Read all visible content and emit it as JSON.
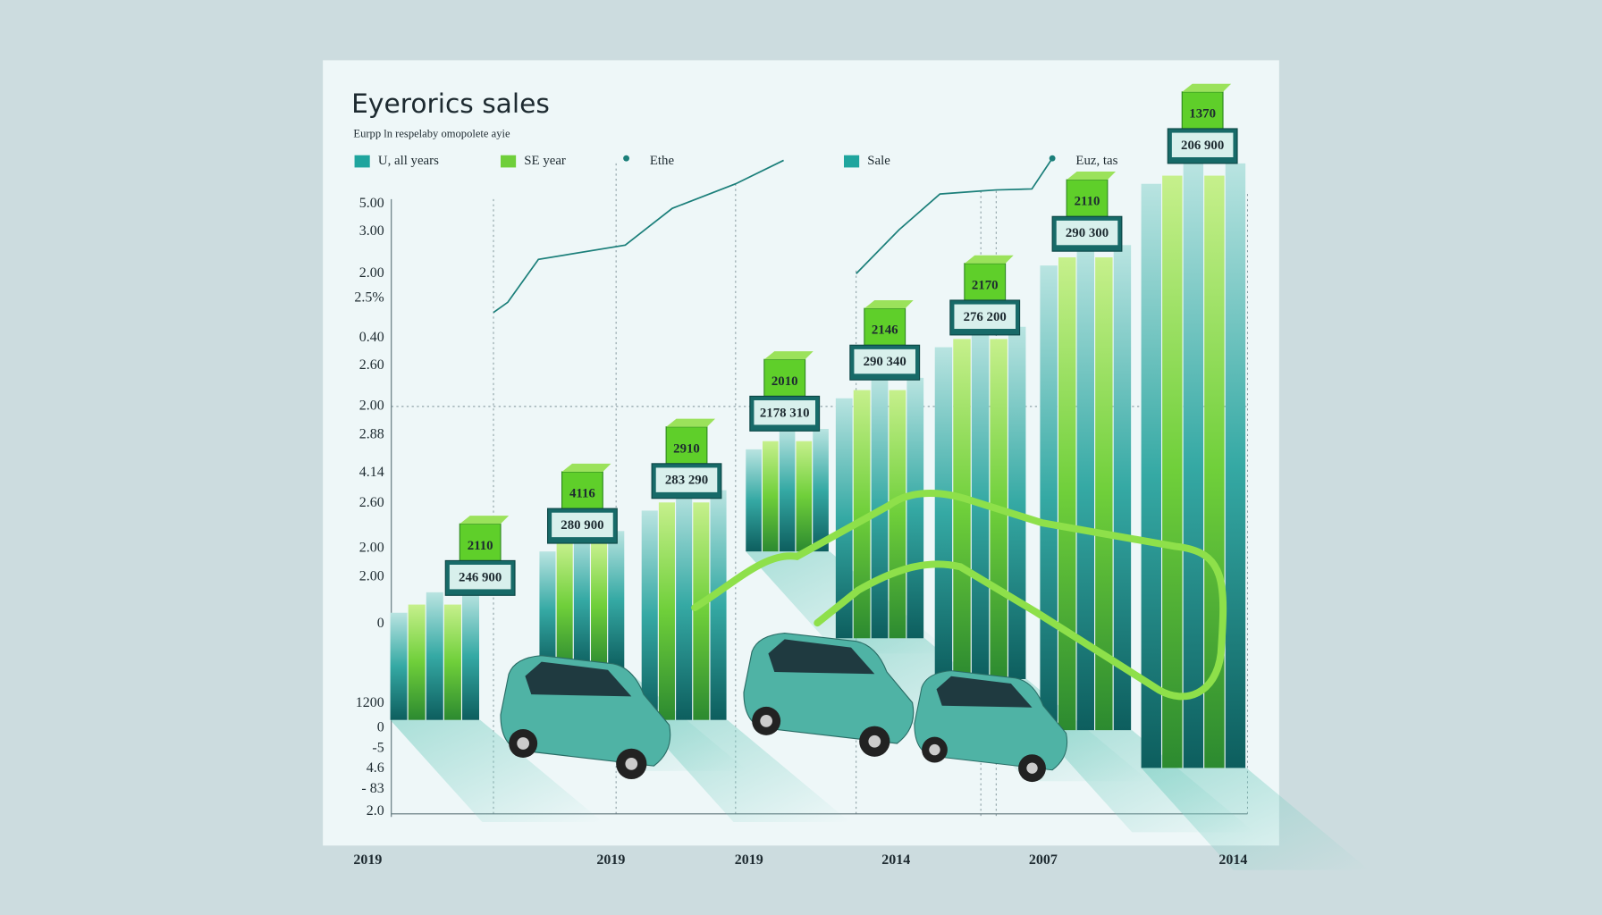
{
  "header": {
    "title": "Eyerorics sales",
    "subtitle": "Eurpp ln respelaby omopolete ayie"
  },
  "legend": [
    {
      "label": "U, all years"
    },
    {
      "label": "SE year"
    },
    {
      "label": "Ethe"
    },
    {
      "label": "Sale"
    },
    {
      "label": "Euz, tas"
    }
  ],
  "y_axis_labels": [
    "5.00",
    "3.00",
    "2.00",
    "2.5%",
    "0.40",
    "2.60",
    "2.00",
    "2.88",
    "4.14",
    "2.60",
    "2.00",
    "2.00",
    "0",
    "1200",
    "0",
    "-5",
    "4.6",
    "- 83",
    "2.0"
  ],
  "x_axis_labels": [
    "2019",
    "2019",
    "2019",
    "2014",
    "2007",
    "2014"
  ],
  "boxes": [
    {
      "top": "2110",
      "bottom": "246 900"
    },
    {
      "top": "4116",
      "bottom": "280 900"
    },
    {
      "top": "2910",
      "bottom": "283 290"
    },
    {
      "top": "2010",
      "bottom": "2178 310"
    },
    {
      "top": "2146",
      "bottom": "290 340"
    },
    {
      "top": "2170",
      "bottom": "276 200"
    },
    {
      "top": "2110",
      "bottom": "290 300"
    },
    {
      "top": "1370",
      "bottom": "206 900"
    }
  ]
}
